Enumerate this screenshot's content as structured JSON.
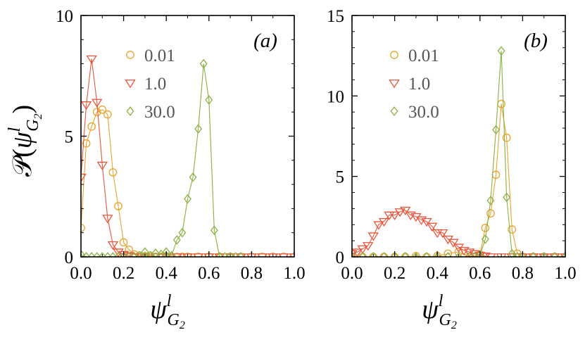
{
  "figure": {
    "ylabel": {
      "script": "𝒫",
      "open": "(",
      "psi": "ψ",
      "sup": "l",
      "sub_letter": "G",
      "sub_num": "2",
      "close": ")"
    },
    "xlabel": {
      "psi": "ψ",
      "sup": "l",
      "sub_letter": "G",
      "sub_num": "2"
    }
  },
  "chart_data": [
    {
      "type": "line",
      "panel_label": "(a)",
      "xlim": [
        0,
        1.0
      ],
      "ylim": [
        0,
        10
      ],
      "xticks": [
        0,
        0.2,
        0.4,
        0.6,
        0.8,
        1.0
      ],
      "xtick_labels": [
        "0.0",
        "0.2",
        "0.4",
        "0.6",
        "0.8",
        "1.0"
      ],
      "yticks": [
        0,
        5,
        10
      ],
      "ytick_labels": [
        "0",
        "5",
        "10"
      ],
      "grid": false,
      "legend_position": "top-left",
      "series": [
        {
          "name": "0.01",
          "marker": "circle",
          "color": "#e8a32c",
          "x": [
            0.0,
            0.025,
            0.05,
            0.075,
            0.1,
            0.125,
            0.15,
            0.175,
            0.2,
            0.225,
            0.25,
            0.275,
            0.3,
            0.325,
            0.35,
            0.375,
            0.4,
            0.425,
            0.45,
            0.475,
            0.5,
            0.55,
            0.6,
            0.65,
            0.7,
            0.75,
            0.8,
            0.85,
            0.9,
            0.95,
            1.0
          ],
          "y": [
            1.2,
            4.7,
            5.4,
            6.0,
            6.1,
            5.9,
            3.5,
            2.1,
            0.6,
            0.3,
            0.1,
            0.05,
            0.0,
            0.05,
            0.0,
            0.0,
            0.0,
            0.0,
            0.0,
            0.0,
            0.0,
            0.0,
            0.0,
            0.0,
            0.0,
            0.0,
            0.0,
            0.0,
            0.0,
            0.0,
            0.0
          ]
        },
        {
          "name": "1.0",
          "marker": "triangle-down",
          "color": "#e8563c",
          "x": [
            0.0,
            0.025,
            0.05,
            0.075,
            0.1,
            0.125,
            0.15,
            0.175,
            0.2,
            0.225,
            0.25,
            0.275,
            0.3,
            0.35,
            0.4,
            0.45,
            0.5,
            0.55,
            0.6,
            0.65,
            0.7,
            0.75,
            0.8,
            0.85,
            0.9,
            0.95,
            1.0
          ],
          "y": [
            3.3,
            6.3,
            8.2,
            6.4,
            3.8,
            1.6,
            0.5,
            0.2,
            0.1,
            0.05,
            0.0,
            0.0,
            0.0,
            0.0,
            0.0,
            0.0,
            0.0,
            0.0,
            0.0,
            0.0,
            0.0,
            0.0,
            0.0,
            0.0,
            0.0,
            0.0,
            0.0
          ]
        },
        {
          "name": "30.0",
          "marker": "diamond",
          "color": "#8db043",
          "x": [
            0.0,
            0.025,
            0.05,
            0.075,
            0.1,
            0.125,
            0.15,
            0.175,
            0.2,
            0.225,
            0.25,
            0.275,
            0.3,
            0.325,
            0.35,
            0.375,
            0.4,
            0.425,
            0.45,
            0.475,
            0.5,
            0.525,
            0.55,
            0.575,
            0.6,
            0.625,
            0.65,
            0.675,
            0.7,
            0.725,
            0.75
          ],
          "y": [
            0.1,
            0.0,
            0.0,
            0.0,
            0.0,
            0.0,
            0.0,
            0.0,
            0.0,
            0.0,
            0.0,
            0.05,
            0.2,
            0.05,
            0.15,
            0.1,
            0.2,
            0.05,
            0.7,
            1.0,
            2.4,
            3.3,
            5.3,
            8.0,
            6.5,
            1.1,
            0.0,
            0.0,
            0.0,
            0.0,
            0.0
          ]
        }
      ]
    },
    {
      "type": "line",
      "panel_label": "(b)",
      "xlim": [
        0,
        1.0
      ],
      "ylim": [
        0,
        15
      ],
      "xticks": [
        0,
        0.2,
        0.4,
        0.6,
        0.8,
        1.0
      ],
      "xtick_labels": [
        "0.0",
        "0.2",
        "0.4",
        "0.6",
        "0.8",
        "1.0"
      ],
      "yticks": [
        0,
        5,
        10,
        15
      ],
      "ytick_labels": [
        "0",
        "5",
        "10",
        "15"
      ],
      "grid": false,
      "legend_position": "top-left",
      "series": [
        {
          "name": "0.01",
          "marker": "circle",
          "color": "#e8a32c",
          "x": [
            0.0,
            0.05,
            0.1,
            0.15,
            0.2,
            0.25,
            0.3,
            0.35,
            0.4,
            0.45,
            0.5,
            0.55,
            0.6,
            0.625,
            0.65,
            0.675,
            0.7,
            0.725,
            0.75,
            0.775,
            0.8,
            0.85,
            0.9,
            0.95,
            1.0
          ],
          "y": [
            0.0,
            0.0,
            0.0,
            0.0,
            0.0,
            0.0,
            0.05,
            0.0,
            0.05,
            0.2,
            0.3,
            0.0,
            0.15,
            1.8,
            2.7,
            5.1,
            9.5,
            7.4,
            1.7,
            0.2,
            0.0,
            0.0,
            0.0,
            0.0,
            0.0
          ]
        },
        {
          "name": "1.0",
          "marker": "triangle-down",
          "color": "#e8563c",
          "x": [
            0.0,
            0.025,
            0.05,
            0.075,
            0.1,
            0.125,
            0.15,
            0.175,
            0.2,
            0.225,
            0.25,
            0.275,
            0.3,
            0.325,
            0.35,
            0.375,
            0.4,
            0.425,
            0.45,
            0.475,
            0.5,
            0.525,
            0.55,
            0.575,
            0.6,
            0.625,
            0.65,
            0.7,
            0.75,
            0.8,
            0.85,
            0.9,
            0.95,
            1.0
          ],
          "y": [
            0.2,
            0.3,
            0.5,
            0.7,
            1.3,
            2.0,
            2.2,
            2.6,
            2.6,
            2.8,
            2.9,
            2.6,
            2.5,
            2.3,
            2.2,
            1.9,
            1.5,
            1.5,
            1.1,
            0.9,
            0.6,
            0.4,
            0.3,
            0.2,
            0.1,
            0.05,
            0.0,
            0.0,
            0.0,
            0.0,
            0.0,
            0.0,
            0.0,
            0.0
          ]
        },
        {
          "name": "30.0",
          "marker": "diamond",
          "color": "#8db043",
          "x": [
            0.0,
            0.05,
            0.1,
            0.15,
            0.2,
            0.25,
            0.3,
            0.35,
            0.4,
            0.45,
            0.5,
            0.55,
            0.575,
            0.6,
            0.625,
            0.65,
            0.675,
            0.7,
            0.725,
            0.75,
            0.775,
            0.8,
            0.85,
            0.9,
            0.95,
            1.0
          ],
          "y": [
            0.0,
            0.0,
            0.0,
            0.0,
            0.0,
            0.0,
            0.0,
            0.0,
            0.0,
            0.0,
            0.0,
            0.0,
            0.0,
            0.1,
            1.1,
            3.5,
            7.9,
            12.8,
            3.7,
            0.2,
            0.0,
            0.0,
            0.0,
            0.0,
            0.0,
            0.0
          ]
        }
      ]
    }
  ]
}
